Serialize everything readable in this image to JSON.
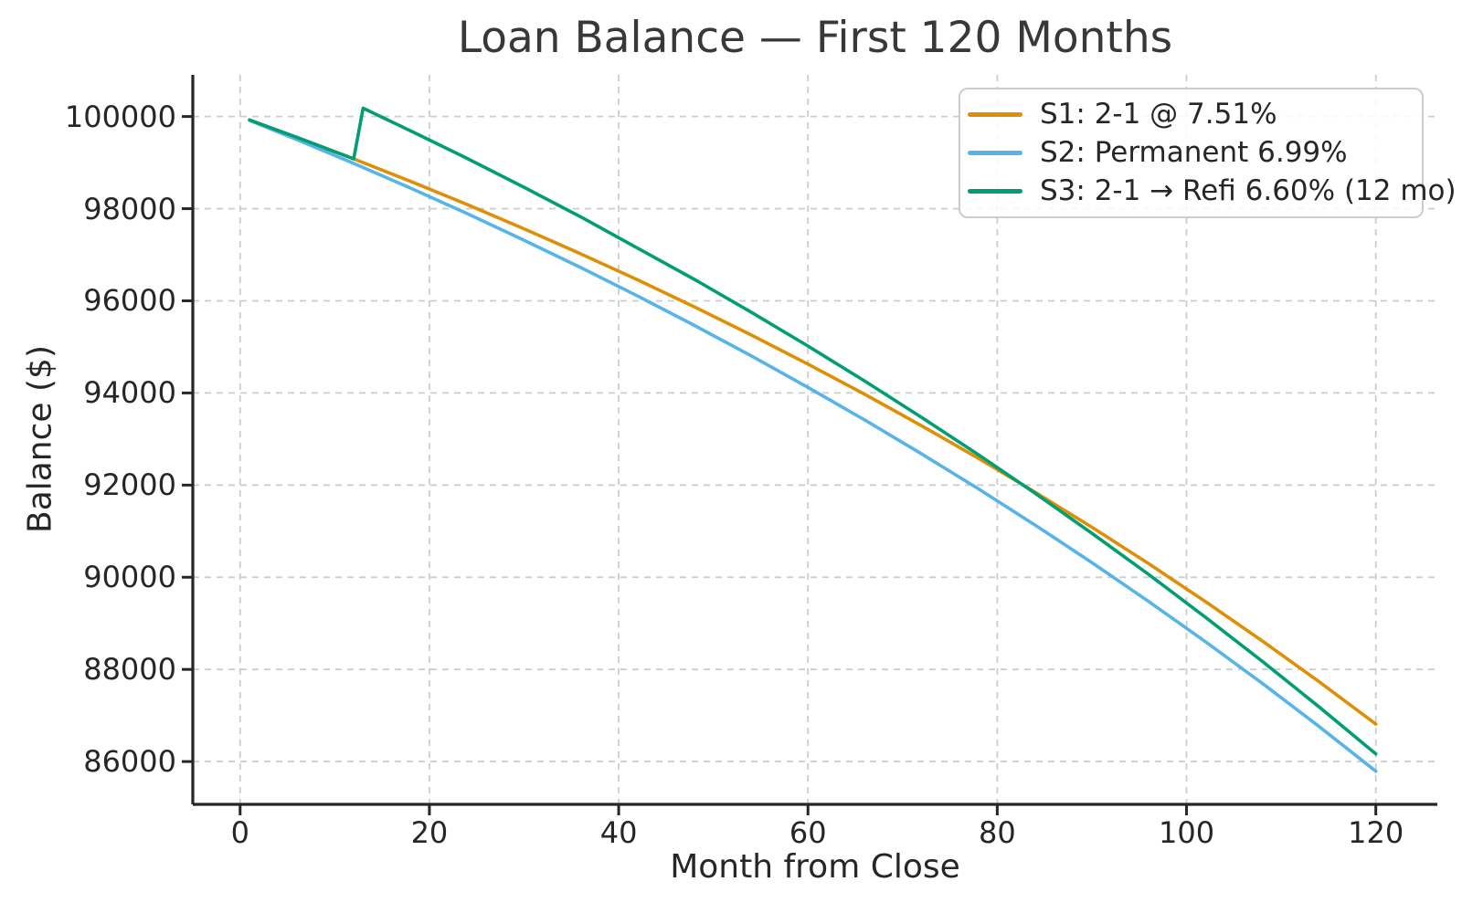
{
  "chart_data": {
    "type": "line",
    "title": "Loan Balance — First 120 Months",
    "xlabel": "Month from Close",
    "ylabel": "Balance ($)",
    "x_ticks": [
      0,
      20,
      40,
      60,
      80,
      100,
      120
    ],
    "y_ticks": [
      86000,
      88000,
      90000,
      92000,
      94000,
      96000,
      98000,
      100000
    ],
    "xlim": [
      -5,
      126.5
    ],
    "ylim": [
      85071,
      100904
    ],
    "grid": true,
    "legend_position": "upper right",
    "series": [
      {
        "name": "S1: 2-1 @ 7.51%",
        "color": "#DE8F05",
        "x": [
          1,
          6,
          12,
          18,
          24,
          30,
          36,
          42,
          48,
          54,
          60,
          66,
          72,
          78,
          84,
          90,
          96,
          102,
          108,
          114,
          120
        ],
        "y": [
          99926,
          99549,
          99080,
          98594,
          98088,
          97564,
          97018,
          96455,
          95869,
          95259,
          94626,
          93971,
          93289,
          92583,
          91847,
          91085,
          90294,
          89472,
          88618,
          87735,
          86812
        ]
      },
      {
        "name": "S2: Permanent 6.99%",
        "color": "#56B4E9",
        "x": [
          1,
          6,
          12,
          18,
          24,
          30,
          36,
          42,
          48,
          54,
          60,
          66,
          72,
          78,
          84,
          90,
          96,
          102,
          108,
          114,
          120
        ],
        "y": [
          99918,
          99500,
          98982,
          98446,
          97891,
          97315,
          96721,
          96105,
          95467,
          94806,
          94121,
          93413,
          92679,
          91920,
          91133,
          90319,
          89475,
          88603,
          87698,
          86762,
          85791
        ]
      },
      {
        "name": "S3: 2-1 → Refi 6.60% (12 mo)",
        "color": "#029E73",
        "x": [
          1,
          6,
          12,
          13,
          18,
          24,
          30,
          36,
          42,
          48,
          54,
          60,
          66,
          72,
          78,
          84,
          90,
          96,
          102,
          108,
          114,
          120
        ],
        "y": [
          99926,
          99549,
          99080,
          100180,
          99692,
          99088,
          98464,
          97820,
          97143,
          96465,
          95753,
          95018,
          94258,
          93472,
          92661,
          91822,
          90955,
          90060,
          89133,
          88176,
          87188,
          86166
        ]
      }
    ]
  },
  "styles": {
    "grid_color": "#cccccc",
    "spine_color": "#262626",
    "tick_color": "#262626",
    "text_color": "#262626",
    "legend_border_color": "#cccccc"
  }
}
